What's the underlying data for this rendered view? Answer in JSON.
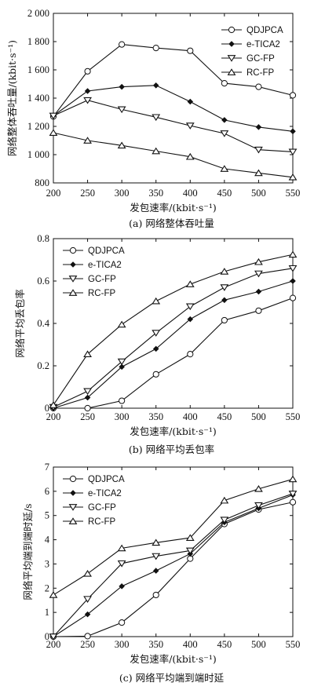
{
  "chart_data": [
    {
      "type": "line",
      "caption": "(a) 网络整体吞吐量",
      "xlabel": "发包速率/(kbit·s⁻¹)",
      "ylabel": "网络整体吞吐量/(kbit·s⁻¹)",
      "x": [
        200,
        250,
        300,
        350,
        400,
        450,
        500,
        550
      ],
      "xlim": [
        200,
        550
      ],
      "ylim": [
        800,
        2000
      ],
      "xticks": [
        "200",
        "250",
        "300",
        "350",
        "400",
        "450",
        "500",
        "550"
      ],
      "yticks": [
        "800",
        "1 000",
        "1 200",
        "1 400",
        "1 600",
        "1 800",
        "2 000"
      ],
      "ytick_values": [
        800,
        1000,
        1200,
        1400,
        1600,
        1800,
        2000
      ],
      "legend_position": "top-right",
      "series": [
        {
          "name": "QDJPCA",
          "marker": "circle",
          "values": [
            1270,
            1590,
            1780,
            1755,
            1735,
            1505,
            1480,
            1420
          ]
        },
        {
          "name": "e-TICA2",
          "marker": "diamond",
          "values": [
            1275,
            1450,
            1480,
            1490,
            1375,
            1245,
            1195,
            1165
          ]
        },
        {
          "name": "GC-FP",
          "marker": "triangle-down",
          "values": [
            1275,
            1385,
            1320,
            1265,
            1205,
            1150,
            1035,
            1020
          ]
        },
        {
          "name": "RC-FP",
          "marker": "triangle-up",
          "values": [
            1155,
            1100,
            1065,
            1025,
            985,
            900,
            870,
            840
          ]
        }
      ]
    },
    {
      "type": "line",
      "caption": "(b) 网络平均丢包率",
      "xlabel": "发包速率/(kbit·s⁻¹)",
      "ylabel": "网络平均丢包率",
      "x": [
        200,
        250,
        300,
        350,
        400,
        450,
        500,
        550
      ],
      "xlim": [
        200,
        550
      ],
      "ylim": [
        0,
        0.8
      ],
      "xticks": [
        "200",
        "250",
        "300",
        "350",
        "400",
        "450",
        "500",
        "550"
      ],
      "yticks": [
        "0",
        "0.2",
        "0.4",
        "0.6",
        "0.8"
      ],
      "ytick_values": [
        0,
        0.2,
        0.4,
        0.6,
        0.8
      ],
      "legend_position": "top-left",
      "series": [
        {
          "name": "QDJPCA",
          "marker": "circle",
          "values": [
            0,
            0,
            0.035,
            0.16,
            0.255,
            0.415,
            0.46,
            0.52
          ]
        },
        {
          "name": "e-TICA2",
          "marker": "diamond",
          "values": [
            0,
            0.05,
            0.195,
            0.28,
            0.42,
            0.51,
            0.55,
            0.6
          ]
        },
        {
          "name": "GC-FP",
          "marker": "triangle-down",
          "values": [
            0.005,
            0.08,
            0.22,
            0.355,
            0.48,
            0.57,
            0.635,
            0.66
          ]
        },
        {
          "name": "RC-FP",
          "marker": "triangle-up",
          "values": [
            0.015,
            0.255,
            0.395,
            0.505,
            0.585,
            0.645,
            0.69,
            0.725
          ]
        }
      ]
    },
    {
      "type": "line",
      "caption": "(c) 网络平均端到端时延",
      "xlabel": "发包速率/(kbit·s⁻¹)",
      "ylabel": "网络平均端到端时延/s",
      "x": [
        200,
        250,
        300,
        350,
        400,
        450,
        500,
        550
      ],
      "xlim": [
        200,
        550
      ],
      "ylim": [
        0,
        7
      ],
      "xticks": [
        "200",
        "250",
        "300",
        "350",
        "400",
        "450",
        "500",
        "550"
      ],
      "yticks": [
        "0",
        "1",
        "2",
        "3",
        "4",
        "5",
        "6",
        "7"
      ],
      "ytick_values": [
        0,
        1,
        2,
        3,
        4,
        5,
        6,
        7
      ],
      "legend_position": "top-left",
      "series": [
        {
          "name": "QDJPCA",
          "marker": "circle",
          "values": [
            0,
            0.02,
            0.58,
            1.72,
            3.22,
            4.65,
            5.25,
            5.55
          ]
        },
        {
          "name": "e-TICA2",
          "marker": "diamond",
          "values": [
            0,
            0.92,
            2.08,
            2.72,
            3.42,
            4.72,
            5.3,
            5.85
          ]
        },
        {
          "name": "GC-FP",
          "marker": "triangle-down",
          "values": [
            0,
            1.55,
            3.02,
            3.32,
            3.55,
            4.82,
            5.42,
            5.9
          ]
        },
        {
          "name": "RC-FP",
          "marker": "triangle-up",
          "values": [
            1.72,
            2.6,
            3.65,
            3.88,
            4.08,
            5.62,
            6.1,
            6.5
          ]
        }
      ]
    }
  ]
}
